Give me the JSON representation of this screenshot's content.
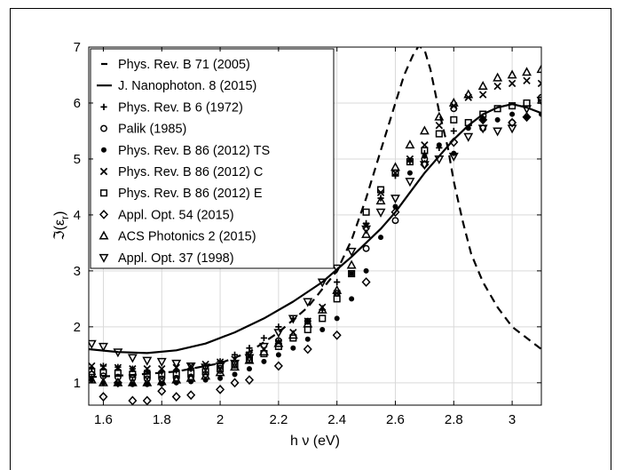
{
  "chart_data": {
    "type": "scatter",
    "xlabel": "h ν (eV)",
    "ylabel": "ℑ(ε_r)",
    "ylabel_main": "ℑ(ε",
    "ylabel_sub": "r",
    "ylabel_close": ")",
    "xlim": [
      1.55,
      3.1
    ],
    "ylim": [
      0.6,
      7
    ],
    "xticks": [
      1.6,
      1.8,
      2,
      2.2,
      2.4,
      2.6,
      2.8,
      3
    ],
    "xtick_labels": [
      "1.6",
      "1.8",
      "2",
      "2.2",
      "2.4",
      "2.6",
      "2.8",
      "3"
    ],
    "yticks": [
      1,
      2,
      3,
      4,
      5,
      6,
      7
    ],
    "ytick_labels": [
      "1",
      "2",
      "3",
      "4",
      "5",
      "6",
      "7"
    ],
    "grid": true,
    "legend_position": "top-left",
    "series": [
      {
        "name": "Phys. Rev. B 71 (2005)",
        "style": "dashed-line",
        "x": [
          1.55,
          1.7,
          1.85,
          2.0,
          2.1,
          2.2,
          2.3,
          2.4,
          2.45,
          2.5,
          2.55,
          2.6,
          2.63,
          2.66,
          2.68,
          2.7,
          2.72,
          2.75,
          2.78,
          2.8,
          2.83,
          2.86,
          2.9,
          2.95,
          3.0,
          3.05,
          3.1
        ],
        "y": [
          1.1,
          1.14,
          1.2,
          1.35,
          1.55,
          1.9,
          2.35,
          3.0,
          3.55,
          4.3,
          5.15,
          6.0,
          6.5,
          6.85,
          7.02,
          6.95,
          6.6,
          5.85,
          5.2,
          4.6,
          3.9,
          3.3,
          2.8,
          2.35,
          2.0,
          1.8,
          1.6
        ]
      },
      {
        "name": "J. Nanophoton. 8 (2015)",
        "style": "solid-line",
        "x": [
          1.55,
          1.65,
          1.75,
          1.85,
          1.95,
          2.05,
          2.15,
          2.25,
          2.35,
          2.45,
          2.55,
          2.6,
          2.65,
          2.7,
          2.75,
          2.8,
          2.85,
          2.9,
          2.95,
          3.0,
          3.05,
          3.1
        ],
        "y": [
          1.6,
          1.55,
          1.53,
          1.58,
          1.7,
          1.9,
          2.15,
          2.45,
          2.8,
          3.25,
          3.75,
          4.05,
          4.4,
          4.75,
          5.05,
          5.35,
          5.6,
          5.8,
          5.92,
          5.98,
          5.92,
          5.82
        ]
      },
      {
        "name": "Phys. Rev. B 6 (1972)",
        "marker": "plus",
        "x": [
          1.56,
          1.6,
          1.65,
          1.7,
          1.75,
          1.8,
          1.85,
          1.9,
          1.95,
          2.0,
          2.05,
          2.1,
          2.15,
          2.2,
          2.25,
          2.3,
          2.35,
          2.4,
          2.45,
          2.5,
          2.55,
          2.6,
          2.65,
          2.7,
          2.75,
          2.8
        ],
        "y": [
          1.25,
          1.3,
          1.28,
          1.25,
          1.22,
          1.2,
          1.22,
          1.25,
          1.3,
          1.38,
          1.5,
          1.62,
          1.8,
          2.0,
          2.15,
          2.1,
          2.3,
          2.8,
          2.95,
          3.85,
          4.3,
          4.7,
          4.95,
          5.1,
          5.2,
          5.5
        ]
      },
      {
        "name": "Palik (1985)",
        "marker": "circle",
        "x": [
          1.56,
          1.6,
          1.65,
          1.7,
          1.75,
          1.8,
          1.85,
          1.9,
          1.95,
          2.0,
          2.1,
          2.2,
          2.3,
          2.4,
          2.5,
          2.6,
          2.7,
          2.8,
          2.9,
          3.0,
          3.1
        ],
        "y": [
          1.15,
          1.12,
          1.1,
          1.08,
          1.07,
          1.07,
          1.08,
          1.1,
          1.15,
          1.22,
          1.4,
          1.75,
          2.1,
          2.6,
          3.4,
          3.9,
          5.0,
          5.9,
          5.55,
          5.65,
          6.1
        ]
      },
      {
        "name": "Phys. Rev. B 86 (2012) TS",
        "marker": "dot",
        "x": [
          1.56,
          1.6,
          1.65,
          1.7,
          1.75,
          1.8,
          1.85,
          1.9,
          1.95,
          2.0,
          2.05,
          2.1,
          2.15,
          2.2,
          2.25,
          2.3,
          2.35,
          2.4,
          2.45,
          2.5,
          2.55,
          2.6,
          2.65,
          2.7,
          2.75,
          2.8,
          2.85,
          2.9,
          2.95,
          3.0,
          3.05,
          3.1
        ],
        "y": [
          1.05,
          1.0,
          0.98,
          0.97,
          0.97,
          0.98,
          1.0,
          1.02,
          1.05,
          1.08,
          1.15,
          1.25,
          1.38,
          1.5,
          1.62,
          1.78,
          1.95,
          2.15,
          2.5,
          3.0,
          3.6,
          4.15,
          4.75,
          5.05,
          5.25,
          5.1,
          5.55,
          5.7,
          5.7,
          5.8,
          5.75,
          5.8
        ]
      },
      {
        "name": "Phys. Rev. B 86 (2012) C",
        "marker": "cross",
        "x": [
          1.56,
          1.6,
          1.65,
          1.7,
          1.75,
          1.8,
          1.85,
          1.9,
          1.95,
          2.0,
          2.05,
          2.1,
          2.15,
          2.2,
          2.25,
          2.3,
          2.35,
          2.4,
          2.45,
          2.5,
          2.55,
          2.6,
          2.65,
          2.7,
          2.75,
          2.8,
          2.85,
          2.9,
          2.95,
          3.0,
          3.05,
          3.1
        ],
        "y": [
          1.3,
          1.28,
          1.27,
          1.25,
          1.25,
          1.25,
          1.27,
          1.3,
          1.33,
          1.37,
          1.42,
          1.5,
          1.6,
          1.72,
          1.9,
          2.1,
          2.35,
          2.6,
          2.95,
          3.8,
          4.4,
          4.75,
          5.0,
          5.25,
          5.6,
          5.95,
          6.1,
          6.15,
          6.3,
          6.35,
          6.4,
          6.35
        ]
      },
      {
        "name": "Phys. Rev. B 86 (2012) E",
        "marker": "square",
        "x": [
          1.56,
          1.6,
          1.65,
          1.7,
          1.75,
          1.8,
          1.85,
          1.9,
          1.95,
          2.0,
          2.05,
          2.1,
          2.15,
          2.2,
          2.25,
          2.3,
          2.35,
          2.4,
          2.45,
          2.5,
          2.55,
          2.6,
          2.65,
          2.7,
          2.75,
          2.8,
          2.85,
          2.9,
          2.95,
          3.0,
          3.05,
          3.1
        ],
        "y": [
          1.2,
          1.18,
          1.17,
          1.15,
          1.14,
          1.14,
          1.15,
          1.17,
          1.2,
          1.25,
          1.32,
          1.42,
          1.52,
          1.65,
          1.8,
          1.95,
          2.15,
          2.5,
          2.95,
          4.05,
          4.45,
          4.75,
          4.95,
          5.15,
          5.45,
          5.7,
          5.65,
          5.8,
          5.9,
          5.95,
          6.0,
          6.05
        ]
      },
      {
        "name": "Appl. Opt. 54 (2015)",
        "marker": "diamond",
        "x": [
          1.56,
          1.6,
          1.65,
          1.7,
          1.75,
          1.8,
          1.85,
          1.9,
          2.0,
          2.05,
          2.1,
          2.2,
          2.3,
          2.4,
          2.5,
          2.6,
          2.7,
          2.8,
          2.9,
          3.0,
          3.05
        ],
        "y": [
          1.15,
          0.75,
          1.0,
          0.68,
          0.68,
          0.85,
          0.75,
          0.78,
          0.88,
          1.0,
          1.05,
          1.3,
          1.6,
          1.85,
          2.8,
          4.05,
          4.9,
          5.3,
          5.7,
          5.65,
          5.75
        ]
      },
      {
        "name": "ACS Photonics 2 (2015)",
        "marker": "triangle-up",
        "x": [
          1.56,
          1.6,
          1.65,
          1.7,
          1.75,
          1.8,
          1.85,
          1.9,
          1.95,
          2.0,
          2.05,
          2.1,
          2.15,
          2.2,
          2.25,
          2.3,
          2.35,
          2.4,
          2.45,
          2.5,
          2.55,
          2.6,
          2.65,
          2.7,
          2.75,
          2.8,
          2.85,
          2.9,
          2.95,
          3.0,
          3.05,
          3.1
        ],
        "y": [
          1.05,
          1.0,
          1.0,
          1.0,
          1.0,
          1.02,
          1.05,
          1.08,
          1.12,
          1.18,
          1.28,
          1.4,
          1.55,
          1.7,
          1.85,
          2.05,
          2.3,
          2.65,
          3.1,
          3.65,
          4.25,
          4.85,
          5.25,
          5.5,
          5.75,
          6.0,
          6.15,
          6.3,
          6.45,
          6.5,
          6.55,
          6.6
        ]
      },
      {
        "name": "Appl. Opt. 37 (1998)",
        "marker": "triangle-down",
        "x": [
          1.56,
          1.6,
          1.65,
          1.7,
          1.75,
          1.8,
          1.85,
          1.9,
          1.95,
          2.0,
          2.05,
          2.1,
          2.15,
          2.2,
          2.25,
          2.3,
          2.35,
          2.4,
          2.45,
          2.5,
          2.55,
          2.6,
          2.65,
          2.7,
          2.75,
          2.8,
          2.85,
          2.9,
          2.95,
          3.0,
          3.05,
          3.1
        ],
        "y": [
          1.7,
          1.65,
          1.55,
          1.45,
          1.4,
          1.38,
          1.35,
          1.3,
          1.28,
          1.3,
          1.35,
          1.45,
          1.65,
          1.9,
          2.15,
          2.45,
          2.8,
          3.05,
          3.35,
          3.75,
          4.05,
          4.3,
          4.6,
          4.9,
          5.0,
          5.05,
          5.4,
          5.55,
          5.5,
          5.55,
          5.9,
          6.05
        ]
      }
    ]
  }
}
